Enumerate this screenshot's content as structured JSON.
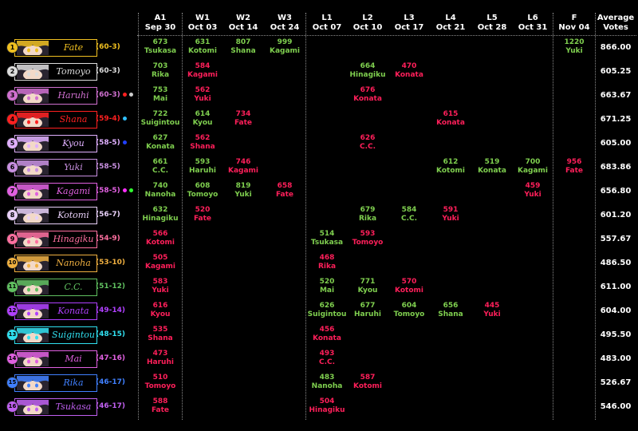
{
  "colors": {
    "win": "#7fcf4f",
    "loss": "#ff1f5a",
    "text": "#ffffff",
    "grid": "#8a8a8a"
  },
  "columns": [
    {
      "round": "A1",
      "date": "Sep 30"
    },
    {
      "round": "W1",
      "date": "Oct 03"
    },
    {
      "round": "W2",
      "date": "Oct 14"
    },
    {
      "round": "W3",
      "date": "Oct 24"
    },
    {
      "round": "L1",
      "date": "Oct 07"
    },
    {
      "round": "L2",
      "date": "Oct 10"
    },
    {
      "round": "L3",
      "date": "Oct 17"
    },
    {
      "round": "L4",
      "date": "Oct 21"
    },
    {
      "round": "L5",
      "date": "Oct 28"
    },
    {
      "round": "L6",
      "date": "Oct 31"
    },
    {
      "round": "F",
      "date": "Nov 04"
    }
  ],
  "avg_header": [
    "Average",
    "Votes"
  ],
  "rows": [
    {
      "seed": "1",
      "name": "Fate",
      "record": "(60-3)",
      "color": "#f0c020",
      "avg": "866.00",
      "dots": [],
      "matches": [
        [
          "A1",
          "673",
          "Tsukasa",
          "win"
        ],
        [
          "W1",
          "631",
          "Kotomi",
          "win"
        ],
        [
          "W2",
          "807",
          "Shana",
          "win"
        ],
        [
          "W3",
          "999",
          "Kagami",
          "win"
        ],
        [
          "F",
          "1220",
          "Yuki",
          "win"
        ]
      ]
    },
    {
      "seed": "2",
      "name": "Tomoyo",
      "record": "(60-3)",
      "color": "#dcdcdc",
      "avg": "605.25",
      "dots": [],
      "matches": [
        [
          "A1",
          "703",
          "Rika",
          "win"
        ],
        [
          "W1",
          "584",
          "Kagami",
          "loss"
        ],
        [
          "L2",
          "664",
          "Hinagiku",
          "win"
        ],
        [
          "L3",
          "470",
          "Konata",
          "loss"
        ]
      ]
    },
    {
      "seed": "3",
      "name": "Haruhi",
      "record": "(60-3)",
      "color": "#d070d0",
      "avg": "663.67",
      "dots": [
        "#ff2020",
        "#cccccc"
      ],
      "matches": [
        [
          "A1",
          "753",
          "Mai",
          "win"
        ],
        [
          "W1",
          "562",
          "Yuki",
          "loss"
        ],
        [
          "L2",
          "676",
          "Konata",
          "loss"
        ]
      ]
    },
    {
      "seed": "4",
      "name": "Shana",
      "record": "(59-4)",
      "color": "#ff2020",
      "avg": "671.25",
      "dots": [
        "#30c0ff"
      ],
      "matches": [
        [
          "A1",
          "722",
          "Suigintou",
          "win"
        ],
        [
          "W1",
          "614",
          "Kyou",
          "win"
        ],
        [
          "W2",
          "734",
          "Fate",
          "loss"
        ],
        [
          "L4",
          "615",
          "Konata",
          "loss"
        ]
      ]
    },
    {
      "seed": "5",
      "name": "Kyou",
      "record": "(58-5)",
      "color": "#e0b0ff",
      "avg": "605.00",
      "dots": [
        "#2040ff"
      ],
      "matches": [
        [
          "A1",
          "627",
          "Konata",
          "win"
        ],
        [
          "W1",
          "562",
          "Shana",
          "loss"
        ],
        [
          "L2",
          "626",
          "C.C.",
          "loss"
        ]
      ]
    },
    {
      "seed": "6",
      "name": "Yuki",
      "record": "(58-5)",
      "color": "#c890e0",
      "avg": "683.86",
      "dots": [],
      "matches": [
        [
          "A1",
          "661",
          "C.C.",
          "win"
        ],
        [
          "W1",
          "593",
          "Haruhi",
          "win"
        ],
        [
          "W2",
          "746",
          "Kagami",
          "loss"
        ],
        [
          "L4",
          "612",
          "Kotomi",
          "win"
        ],
        [
          "L5",
          "519",
          "Konata",
          "win"
        ],
        [
          "L6",
          "700",
          "Kagami",
          "win"
        ],
        [
          "F",
          "956",
          "Fate",
          "loss"
        ]
      ]
    },
    {
      "seed": "7",
      "name": "Kagami",
      "record": "(58-5)",
      "color": "#e060e0",
      "avg": "656.80",
      "dots": [
        "#ff30ff",
        "#30ff30"
      ],
      "matches": [
        [
          "A1",
          "740",
          "Nanoha",
          "win"
        ],
        [
          "W1",
          "608",
          "Tomoyo",
          "win"
        ],
        [
          "W2",
          "819",
          "Yuki",
          "win"
        ],
        [
          "W3",
          "658",
          "Fate",
          "loss"
        ],
        [
          "L6",
          "459",
          "Yuki",
          "loss"
        ]
      ]
    },
    {
      "seed": "8",
      "name": "Kotomi",
      "record": "(56-7)",
      "color": "#e8d0f8",
      "avg": "601.20",
      "dots": [],
      "matches": [
        [
          "A1",
          "632",
          "Hinagiku",
          "win"
        ],
        [
          "W1",
          "520",
          "Fate",
          "loss"
        ],
        [
          "L2",
          "679",
          "Rika",
          "win"
        ],
        [
          "L3",
          "584",
          "C.C.",
          "win"
        ],
        [
          "L4",
          "591",
          "Yuki",
          "loss"
        ]
      ]
    },
    {
      "seed": "9",
      "name": "Hinagiku",
      "record": "(54-9)",
      "color": "#ff70a0",
      "avg": "557.67",
      "dots": [],
      "matches": [
        [
          "A1",
          "566",
          "Kotomi",
          "loss"
        ],
        [
          "L1",
          "514",
          "Tsukasa",
          "win"
        ],
        [
          "L2",
          "593",
          "Tomoyo",
          "loss"
        ]
      ]
    },
    {
      "seed": "10",
      "name": "Nanoha",
      "record": "(53-10)",
      "color": "#f0b040",
      "avg": "486.50",
      "dots": [],
      "matches": [
        [
          "A1",
          "505",
          "Kagami",
          "loss"
        ],
        [
          "L1",
          "468",
          "Rika",
          "loss"
        ]
      ]
    },
    {
      "seed": "11",
      "name": "C.C.",
      "record": "(51-12)",
      "color": "#60c060",
      "avg": "611.00",
      "dots": [],
      "matches": [
        [
          "A1",
          "583",
          "Yuki",
          "loss"
        ],
        [
          "L1",
          "520",
          "Mai",
          "win"
        ],
        [
          "L2",
          "771",
          "Kyou",
          "win"
        ],
        [
          "L3",
          "570",
          "Kotomi",
          "loss"
        ]
      ]
    },
    {
      "seed": "12",
      "name": "Konata",
      "record": "(49-14)",
      "color": "#b040ff",
      "avg": "604.00",
      "dots": [],
      "matches": [
        [
          "A1",
          "616",
          "Kyou",
          "loss"
        ],
        [
          "L1",
          "626",
          "Suigintou",
          "win"
        ],
        [
          "L2",
          "677",
          "Haruhi",
          "win"
        ],
        [
          "L3",
          "604",
          "Tomoyo",
          "win"
        ],
        [
          "L4",
          "656",
          "Shana",
          "win"
        ],
        [
          "L5",
          "445",
          "Yuki",
          "loss"
        ]
      ]
    },
    {
      "seed": "13",
      "name": "Suigintou",
      "record": "(48-15)",
      "color": "#30e0f0",
      "avg": "495.50",
      "dots": [],
      "matches": [
        [
          "A1",
          "535",
          "Shana",
          "loss"
        ],
        [
          "L1",
          "456",
          "Konata",
          "loss"
        ]
      ]
    },
    {
      "seed": "14",
      "name": "Mai",
      "record": "(47-16)",
      "color": "#e060e0",
      "avg": "483.00",
      "dots": [],
      "matches": [
        [
          "A1",
          "473",
          "Haruhi",
          "loss"
        ],
        [
          "L1",
          "493",
          "C.C.",
          "loss"
        ]
      ]
    },
    {
      "seed": "15",
      "name": "Rika",
      "record": "(46-17)",
      "color": "#4080ff",
      "avg": "526.67",
      "dots": [],
      "matches": [
        [
          "A1",
          "510",
          "Tomoyo",
          "loss"
        ],
        [
          "L1",
          "483",
          "Nanoha",
          "win"
        ],
        [
          "L2",
          "587",
          "Kotomi",
          "loss"
        ]
      ]
    },
    {
      "seed": "16",
      "name": "Tsukasa",
      "record": "(46-17)",
      "color": "#c060f0",
      "avg": "546.00",
      "dots": [],
      "matches": [
        [
          "A1",
          "588",
          "Fate",
          "loss"
        ],
        [
          "L1",
          "504",
          "Hinagiku",
          "loss"
        ]
      ]
    }
  ]
}
